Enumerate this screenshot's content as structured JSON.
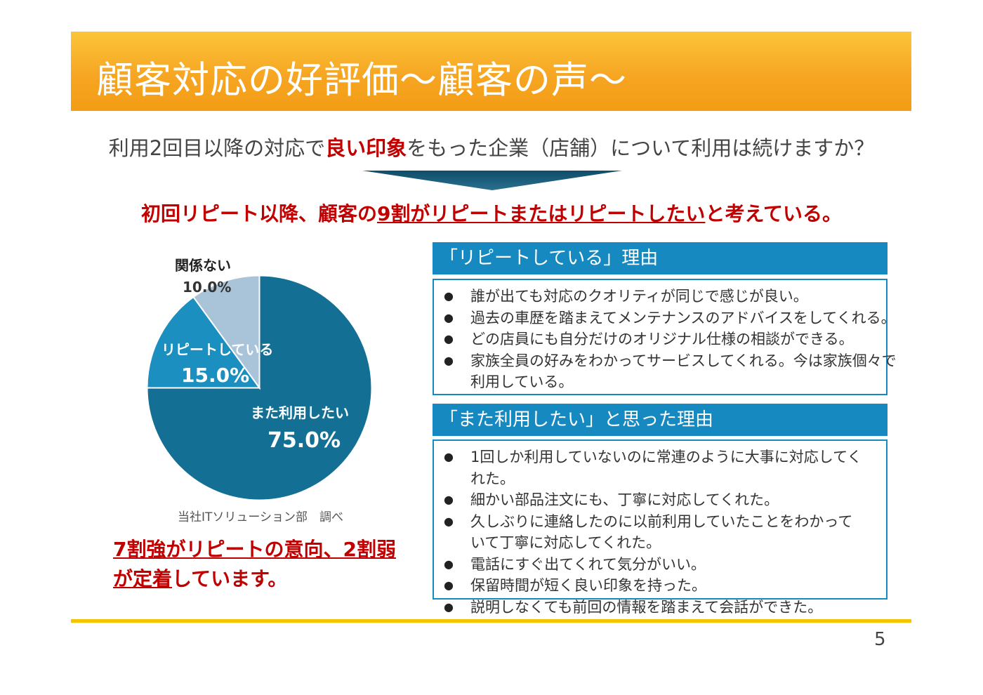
{
  "title": "顧客対応の好評価～顧客の声～",
  "question": {
    "before": "利用2回目以降の対応で",
    "highlight": "良い印象",
    "after": "をもった企業（店舗）について利用は続けますか？"
  },
  "headline": {
    "part1": "初回リピート以降、顧客の",
    "underlined": "9割がリピートまたはリピートしたい",
    "part3": "と考えている。"
  },
  "chart_data": {
    "type": "pie",
    "slices": [
      {
        "label": "また利用したい",
        "value": 75.0,
        "display": "75.0%",
        "color": "#136f93"
      },
      {
        "label": "リピートしている",
        "value": 15.0,
        "display": "15.0%",
        "color": "#1a8fc0"
      },
      {
        "label": "関係ない",
        "value": 10.0,
        "display": "10.0%",
        "color": "#a9c3d9"
      }
    ]
  },
  "source": "当社ITソリューション部　調べ",
  "conclusion": {
    "part1": "7割強がリピートの意向、2割弱",
    "part2_underlined": "が定着",
    "part3": "しています。"
  },
  "panels": [
    {
      "header": "「リピートしている」理由",
      "items": [
        "誰が出ても対応のクオリティが同じで感じが良い。",
        "過去の車歴を踏まえてメンテナンスのアドバイスをしてくれる。",
        "どの店員にも自分だけのオリジナル仕様の相談ができる。",
        "家族全員の好みをわかってサービスしてくれる。今は家族個々で利用している。"
      ]
    },
    {
      "header": "「また利用したい」と思った理由",
      "items": [
        "1回しか利用していないのに常連のように大事に対応してくれた。",
        "細かい部品注文にも、丁寧に対応してくれた。",
        "久しぶりに連絡したのに以前利用していたことをわかっていて丁寧に対応してくれた。",
        "電話にすぐ出てくれて気分がいい。",
        "保留時間が短く良い印象を持った。",
        "説明しなくても前回の情報を踏まえて会話ができた。"
      ]
    }
  ],
  "bullet": "●",
  "page_number": "5"
}
